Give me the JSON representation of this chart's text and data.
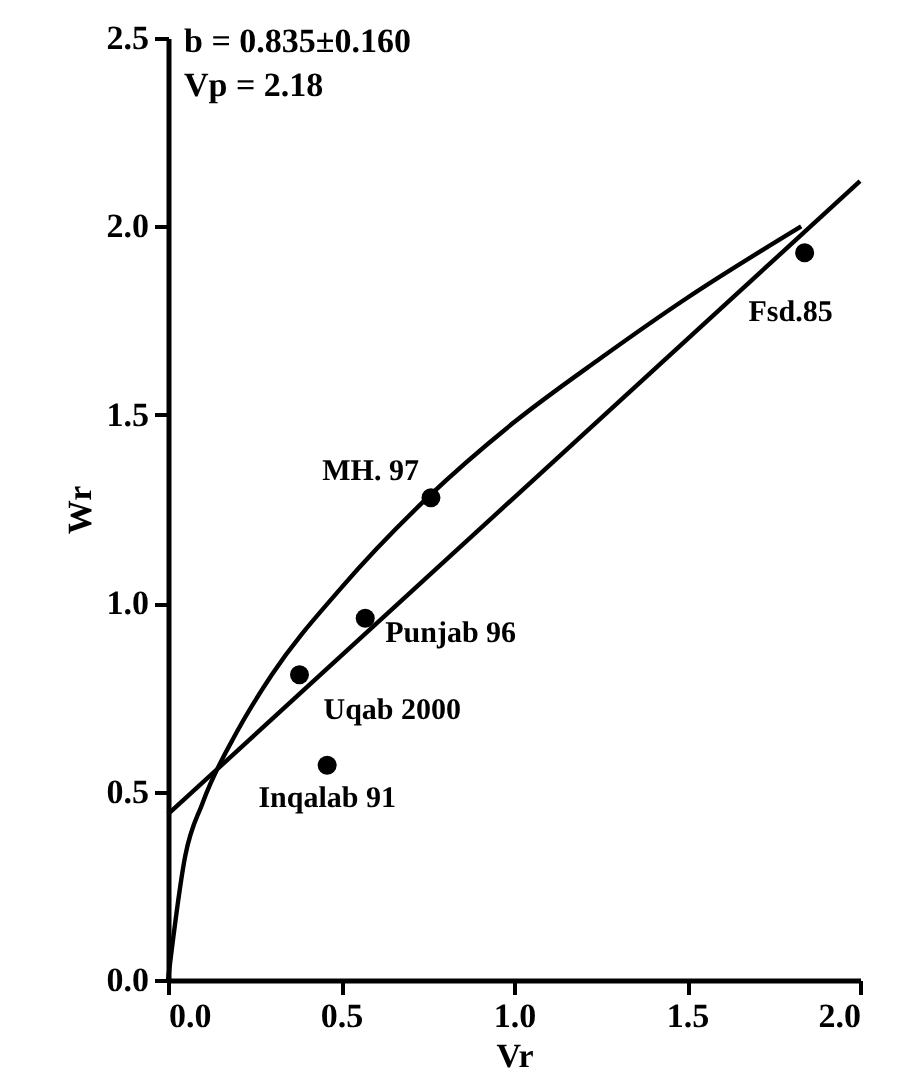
{
  "chart_data": {
    "type": "scatter",
    "xlabel": "Vr",
    "ylabel": "Wr",
    "annotations": [
      "b    = 0.835±0.160",
      "Vp = 2.18",
      {
        "text": "Fsd.85",
        "x": 1.84,
        "y": 1.93
      },
      {
        "text": "MH. 97",
        "x": 0.76,
        "y": 1.28
      },
      {
        "text": "Punjab 96",
        "x": 0.57,
        "y": 0.96
      },
      {
        "text": "Uqab 2000",
        "x": 0.38,
        "y": 0.81
      },
      {
        "text": "Inqalab 91",
        "x": 0.46,
        "y": 0.57
      }
    ],
    "x": [
      1.84,
      0.76,
      0.57,
      0.38,
      0.46
    ],
    "series": [
      {
        "color": "#000000",
        "marker": "circle",
        "values": [
          1.93,
          1.28,
          0.96,
          0.81,
          0.57
        ]
      },
      {
        "type": "line",
        "color": "#000000",
        "x": [
          0,
          2.0
        ],
        "values": [
          0.44,
          2.12
        ]
      },
      {
        "type": "line",
        "color": "#000000",
        "x": [
          0,
          0.05,
          0.1,
          0.2,
          0.3,
          0.5,
          0.75,
          1.0,
          1.25,
          1.5,
          1.83
        ],
        "values": [
          0,
          0.33,
          0.47,
          0.66,
          0.81,
          1.04,
          1.28,
          1.48,
          1.65,
          1.81,
          2.0
        ]
      }
    ],
    "xlim": [
      0,
      2.0
    ],
    "ylim": [
      0,
      2.5
    ],
    "xticks": [
      {
        "value": 0,
        "label": "0.0"
      },
      0.5,
      {
        "value": 1,
        "label": "1.0"
      },
      1.5,
      {
        "value": 2,
        "label": "2.0"
      }
    ],
    "yticks": [
      {
        "value": 0,
        "label": "0.0"
      },
      0.5,
      {
        "value": 1,
        "label": "1.0"
      },
      1.5,
      {
        "value": 2,
        "label": "2.0"
      },
      2.5
    ],
    "line_style": "solid"
  }
}
